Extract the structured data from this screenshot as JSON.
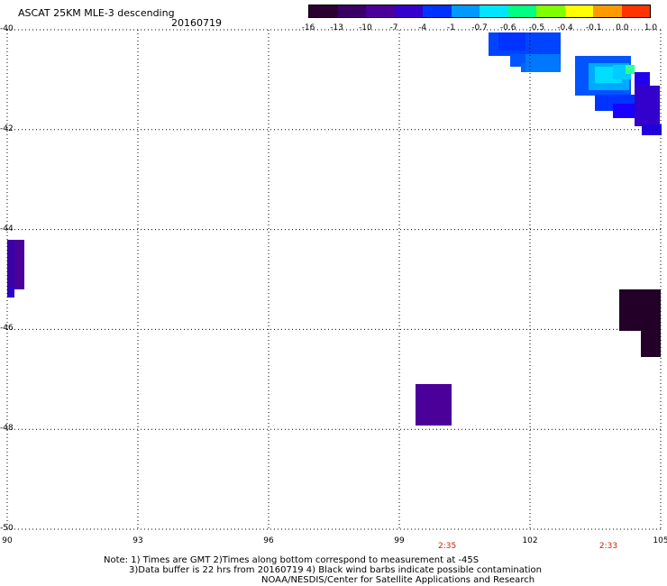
{
  "header": {
    "title": "ASCAT 25KM MLE-3 descending",
    "date": "20160719"
  },
  "colorbar": {
    "labels": [
      "-16",
      "-13",
      "-10",
      "-7",
      "-4",
      "-1",
      "-0.7",
      "-0.6",
      "-0.5",
      "-0.4",
      "-0.1",
      "0.0",
      "1.0"
    ],
    "colors": [
      "#2a0030",
      "#3b0066",
      "#4b0099",
      "#3300cc",
      "#0033ff",
      "#0099ff",
      "#00e5ff",
      "#00ff80",
      "#80ff00",
      "#ffff00",
      "#ff9900",
      "#ff3300"
    ]
  },
  "map": {
    "lon_ticks": [
      "90",
      "93",
      "96",
      "99",
      "102",
      "105"
    ],
    "lat_ticks": [
      "-40",
      "-42",
      "-44",
      "-46",
      "-48",
      "-50"
    ],
    "lon_range": [
      90,
      105
    ],
    "lat_range": [
      -40,
      -50
    ],
    "grid": true,
    "pass_times": [
      {
        "label": "2:35",
        "lon": 100.1
      },
      {
        "label": "2:33",
        "lon": 103.8
      }
    ]
  },
  "notes": {
    "line1": "Note: 1) Times are GMT 2)Times along bottom correspond to measurement at -45S",
    "line2": "3)Data buffer is 22 hrs from 20160719 4) Black wind barbs indicate possible contamination",
    "line3": "NOAA/NESDIS/Center for Satellite Applications and Research"
  }
}
